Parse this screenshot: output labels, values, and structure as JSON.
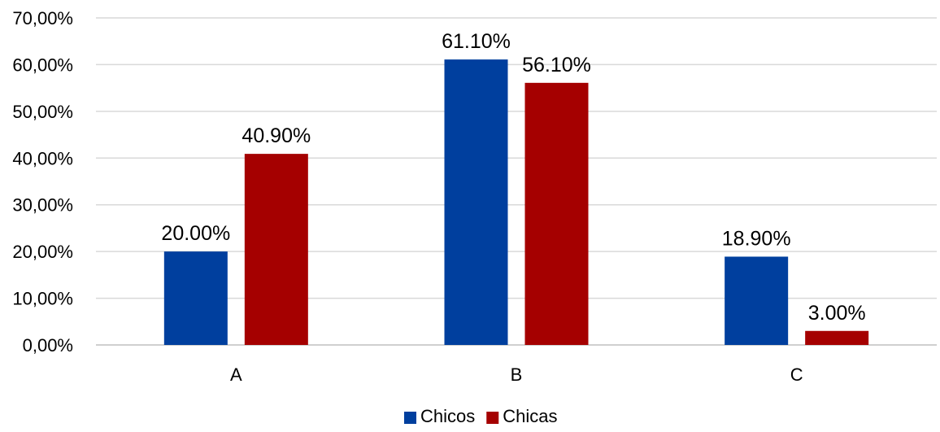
{
  "chart_data": {
    "type": "bar",
    "categories": [
      "A",
      "B",
      "C"
    ],
    "series": [
      {
        "name": "Chicos",
        "color": "#003f9e",
        "values": [
          20.0,
          61.1,
          18.9
        ],
        "labels": [
          "20.00%",
          "61.10%",
          "18.90%"
        ]
      },
      {
        "name": "Chicas",
        "color": "#a50000",
        "values": [
          40.9,
          56.1,
          3.0
        ],
        "labels": [
          "40.90%",
          "56.10%",
          "3.00%"
        ]
      }
    ],
    "ylim": [
      0,
      70
    ],
    "yticks": [
      0,
      10,
      20,
      30,
      40,
      50,
      60,
      70
    ],
    "ytick_labels": [
      "0,00%",
      "10,00%",
      "20,00%",
      "30,00%",
      "40,00%",
      "50,00%",
      "60,00%",
      "70,00%"
    ],
    "grid": true,
    "legend_position": "bottom-center",
    "title": "",
    "xlabel": "",
    "ylabel": ""
  }
}
